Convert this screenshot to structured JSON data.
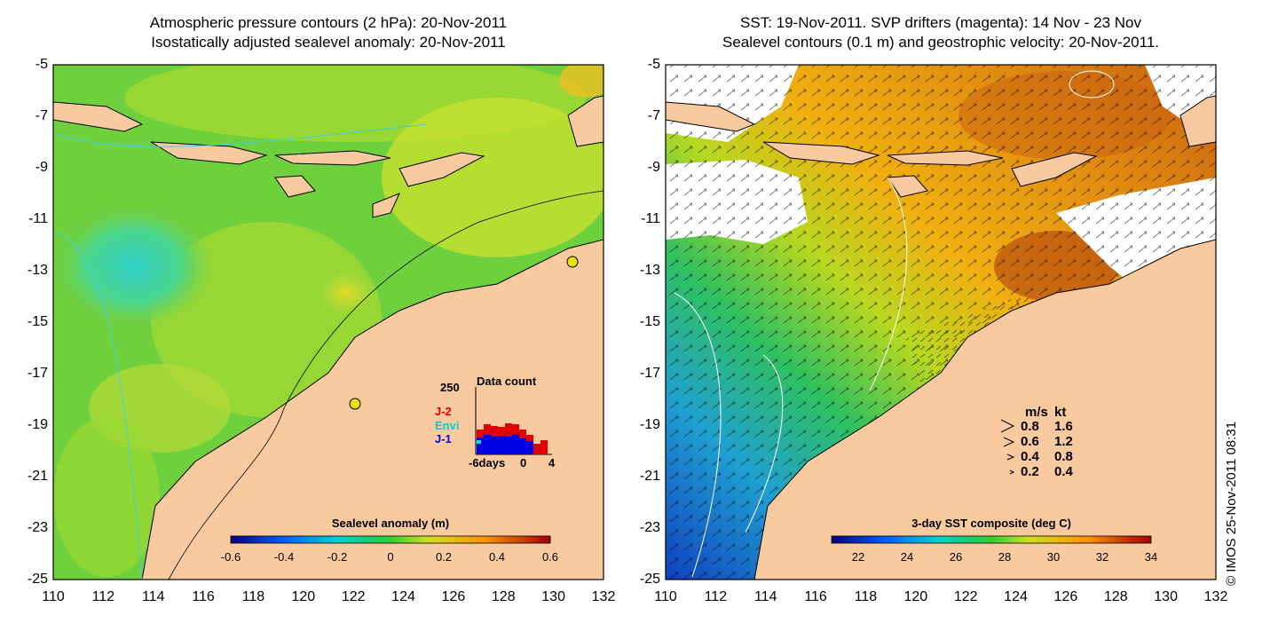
{
  "left_panel": {
    "title_line1": "Atmospheric pressure contours (2 hPa): 20-Nov-2011",
    "title_line2": "Isostatically adjusted sealevel anomaly: 20-Nov-2011",
    "colorbar_label": "Sealevel anomaly (m)",
    "colorbar_ticks": [
      "-0.6",
      "-0.4",
      "-0.2",
      "0",
      "0.2",
      "0.4",
      "0.6"
    ],
    "inset": {
      "title": "Data count",
      "ymax": "250",
      "x_start": "-6days",
      "x_mid": "0",
      "x_end": "4",
      "legend": [
        {
          "name": "J-2",
          "color": "#e00000"
        },
        {
          "name": "Envi",
          "color": "#00e0e0"
        },
        {
          "name": "J-1",
          "color": "#0000e0"
        }
      ]
    }
  },
  "right_panel": {
    "title_line1": "SST: 19-Nov-2011. SVP drifters (magenta): 14 Nov - 23 Nov",
    "title_line2": "Sealevel contours (0.1 m) and geostrophic velocity: 20-Nov-2011.",
    "colorbar_label": "3-day SST composite (deg C)",
    "colorbar_ticks": [
      "22",
      "24",
      "26",
      "28",
      "30",
      "32",
      "34"
    ],
    "velocity_legend": {
      "header_ms": "m/s",
      "header_kt": "kt",
      "rows": [
        {
          "ms": "0.8",
          "kt": "1.6"
        },
        {
          "ms": "0.6",
          "kt": "1.2"
        },
        {
          "ms": "0.4",
          "kt": "0.8"
        },
        {
          "ms": "0.2",
          "kt": "0.4"
        }
      ]
    }
  },
  "axes": {
    "y_ticks": [
      "-5",
      "-7",
      "-9",
      "-11",
      "-13",
      "-15",
      "-17",
      "-19",
      "-21",
      "-23",
      "-25"
    ],
    "x_ticks": [
      "110",
      "112",
      "114",
      "116",
      "118",
      "120",
      "122",
      "124",
      "126",
      "128",
      "130",
      "132"
    ]
  },
  "copyright": "© IMOS 25-Nov-2011 08:31",
  "colors": {
    "land": "#f9c9a0",
    "sea_green": "#7bd03a",
    "sst_orange": "#e89a10"
  }
}
